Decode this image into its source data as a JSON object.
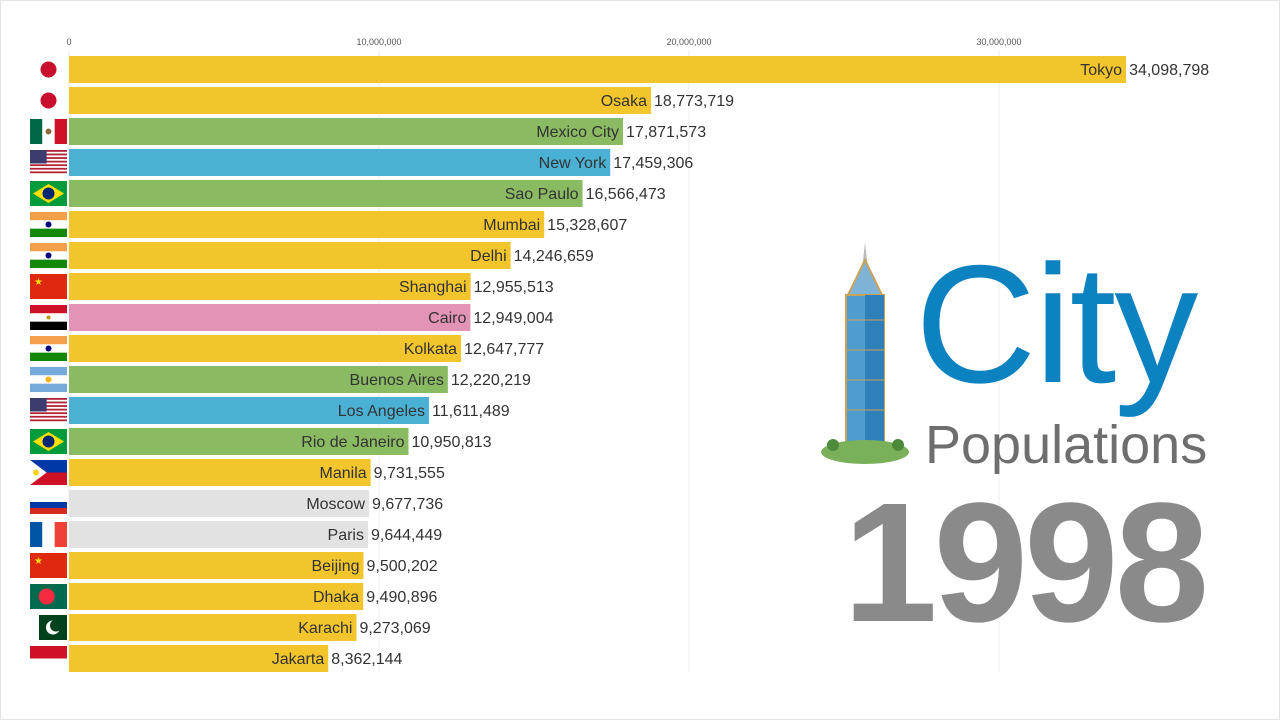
{
  "title": {
    "line1": "City",
    "line2": "Populations"
  },
  "year": "1998",
  "chart_data": {
    "type": "bar",
    "orientation": "horizontal",
    "xlim": [
      0,
      34098798
    ],
    "ticks": [
      0,
      10000000,
      20000000,
      30000000
    ],
    "tick_labels": [
      "0",
      "10,000,000",
      "20,000,000",
      "30,000,000"
    ],
    "grid": true,
    "bars": [
      {
        "city": "Tokyo",
        "value": 34098798,
        "label": "34,098,798",
        "color": "#f2c52c",
        "flag": "japan"
      },
      {
        "city": "Osaka",
        "value": 18773719,
        "label": "18,773,719",
        "color": "#f2c52c",
        "flag": "japan"
      },
      {
        "city": "Mexico City",
        "value": 17871573,
        "label": "17,871,573",
        "color": "#8aba62",
        "flag": "mexico"
      },
      {
        "city": "New York",
        "value": 17459306,
        "label": "17,459,306",
        "color": "#4bb1d4",
        "flag": "usa"
      },
      {
        "city": "Sao Paulo",
        "value": 16566473,
        "label": "16,566,473",
        "color": "#8aba62",
        "flag": "brazil"
      },
      {
        "city": "Mumbai",
        "value": 15328607,
        "label": "15,328,607",
        "color": "#f2c52c",
        "flag": "india"
      },
      {
        "city": "Delhi",
        "value": 14246659,
        "label": "14,246,659",
        "color": "#f2c52c",
        "flag": "india"
      },
      {
        "city": "Shanghai",
        "value": 12955513,
        "label": "12,955,513",
        "color": "#f2c52c",
        "flag": "china"
      },
      {
        "city": "Cairo",
        "value": 12949004,
        "label": "12,949,004",
        "color": "#e393b6",
        "flag": "egypt"
      },
      {
        "city": "Kolkata",
        "value": 12647777,
        "label": "12,647,777",
        "color": "#f2c52c",
        "flag": "india"
      },
      {
        "city": "Buenos Aires",
        "value": 12220219,
        "label": "12,220,219",
        "color": "#8aba62",
        "flag": "argentina"
      },
      {
        "city": "Los Angeles",
        "value": 11611489,
        "label": "11,611,489",
        "color": "#4bb1d4",
        "flag": "usa"
      },
      {
        "city": "Rio de Janeiro",
        "value": 10950813,
        "label": "10,950,813",
        "color": "#8aba62",
        "flag": "brazil"
      },
      {
        "city": "Manila",
        "value": 9731555,
        "label": "9,731,555",
        "color": "#f2c52c",
        "flag": "philippines"
      },
      {
        "city": "Moscow",
        "value": 9677736,
        "label": "9,677,736",
        "color": "#e2e2e2",
        "flag": "russia"
      },
      {
        "city": "Paris",
        "value": 9644449,
        "label": "9,644,449",
        "color": "#e2e2e2",
        "flag": "france"
      },
      {
        "city": "Beijing",
        "value": 9500202,
        "label": "9,500,202",
        "color": "#f2c52c",
        "flag": "china"
      },
      {
        "city": "Dhaka",
        "value": 9490896,
        "label": "9,490,896",
        "color": "#f2c52c",
        "flag": "bangladesh"
      },
      {
        "city": "Karachi",
        "value": 9273069,
        "label": "9,273,069",
        "color": "#f2c52c",
        "flag": "pakistan"
      },
      {
        "city": "Jakarta",
        "value": 8362144,
        "label": "8,362,144",
        "color": "#f2c52c",
        "flag": "indonesia"
      }
    ]
  }
}
